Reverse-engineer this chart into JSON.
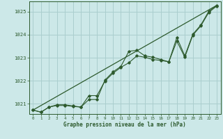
{
  "title": "Graphe pression niveau de la mer (hPa)",
  "bg_color": "#cce8e8",
  "line_color": "#2d5a2d",
  "grid_color": "#aacece",
  "xlim": [
    -0.5,
    23.5
  ],
  "ylim": [
    1020.55,
    1025.45
  ],
  "yticks": [
    1021,
    1022,
    1023,
    1024,
    1025
  ],
  "xticks": [
    0,
    1,
    2,
    3,
    4,
    5,
    6,
    7,
    8,
    9,
    10,
    11,
    12,
    13,
    14,
    15,
    16,
    17,
    18,
    19,
    20,
    21,
    22,
    23
  ],
  "series1": [
    1020.72,
    1020.63,
    1020.85,
    1020.92,
    1020.92,
    1020.88,
    1020.85,
    1021.35,
    1021.35,
    1021.98,
    1022.32,
    1022.58,
    1022.78,
    1023.08,
    1023.02,
    1022.92,
    1022.88,
    1022.82,
    1023.72,
    1023.02,
    1023.98,
    1024.38,
    1024.97,
    1025.25
  ],
  "series2": [
    1020.72,
    1020.63,
    1020.85,
    1020.95,
    1020.95,
    1020.9,
    1020.85,
    1021.18,
    1021.18,
    1022.02,
    1022.38,
    1022.62,
    1023.28,
    1023.32,
    1023.08,
    1023.02,
    1022.92,
    1022.82,
    1023.88,
    1023.08,
    1024.02,
    1024.42,
    1025.02,
    1025.28
  ],
  "trend_x": [
    0,
    23
  ],
  "trend_y": [
    1020.72,
    1025.28
  ]
}
